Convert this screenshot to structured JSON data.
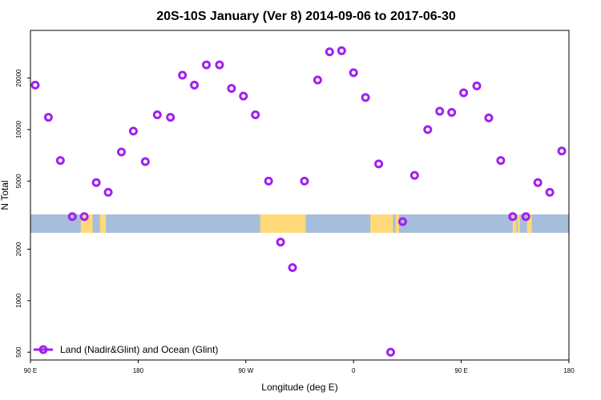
{
  "colors": {
    "ocean": "#a6bddb",
    "land": "#ffd97a",
    "marker": "#a020f0"
  },
  "chart_data": {
    "type": "scatter",
    "title": "20S-10S January (Ver 8)   2014-09-06 to 2017-06-30",
    "xlabel": "Longitude (deg E)",
    "ylabel": "N Total",
    "yscale": "log",
    "xlim": [
      90,
      540
    ],
    "ylim": [
      450,
      38000
    ],
    "x_ticks": [
      {
        "value": 90,
        "label": "90 E"
      },
      {
        "value": 180,
        "label": "180"
      },
      {
        "value": 270,
        "label": "90 W"
      },
      {
        "value": 360,
        "label": "0"
      },
      {
        "value": 450,
        "label": "90 E"
      },
      {
        "value": 540,
        "label": "180"
      }
    ],
    "y_ticks": [
      {
        "value": 500,
        "label": "500"
      },
      {
        "value": 1000,
        "label": "1000"
      },
      {
        "value": 2000,
        "label": "2000"
      },
      {
        "value": 5000,
        "label": "5000"
      },
      {
        "value": 10000,
        "label": "10000"
      },
      {
        "value": 20000,
        "label": "20000"
      }
    ],
    "legend": {
      "label": "Land (Nadir&Glint) and Ocean (Glint)",
      "position": "bottom-left"
    },
    "series": [
      {
        "name": "Land (Nadir&Glint) and Ocean (Glint)",
        "x": [
          94,
          105,
          115,
          125,
          135,
          145,
          155,
          166,
          176,
          186,
          196,
          207,
          217,
          227,
          237,
          248,
          258,
          268,
          278,
          289,
          299,
          309,
          319,
          330,
          340,
          350,
          360,
          370,
          381,
          391,
          401,
          411,
          422,
          432,
          442,
          452,
          463,
          473,
          483,
          493,
          504,
          514,
          524,
          534
        ],
        "y": [
          18200,
          11800,
          6600,
          3100,
          3100,
          4900,
          4300,
          7400,
          9800,
          6500,
          12200,
          11800,
          20800,
          18200,
          23900,
          23900,
          17400,
          15700,
          12200,
          5000,
          2200,
          1560,
          5000,
          19500,
          28500,
          28900,
          21500,
          15400,
          6300,
          500,
          2900,
          5400,
          10000,
          12800,
          12600,
          16400,
          18000,
          11700,
          6600,
          3100,
          3100,
          4900,
          4300,
          7500
        ]
      }
    ]
  },
  "map_strip": {
    "ocean_color": "#a6bddb",
    "land_color": "#ffd97a",
    "land_segments": [
      {
        "lon_start": 132,
        "lon_end": 142
      },
      {
        "lon_start": 148,
        "lon_end": 153
      },
      {
        "lon_start": 282,
        "lon_end": 320
      },
      {
        "lon_start": 374,
        "lon_end": 393
      },
      {
        "lon_start": 395,
        "lon_end": 398
      },
      {
        "lon_start": 493,
        "lon_end": 496
      },
      {
        "lon_start": 497,
        "lon_end": 499
      },
      {
        "lon_start": 505,
        "lon_end": 509
      }
    ]
  }
}
